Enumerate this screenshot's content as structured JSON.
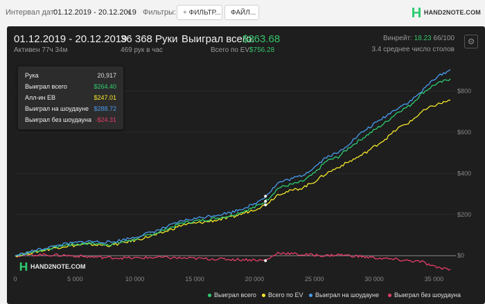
{
  "toolbar": {
    "date_interval_label": "Интервал дат:",
    "date_interval_value": "01.12.2019 - 20.12.2019",
    "filters_label": "Фильтры:",
    "filters_button": "ФИЛЬТР...",
    "files_button": "ФАЙЛ...",
    "logo_text": "HAND2NOTE.COM"
  },
  "summary": {
    "date_range": "01.12.2019 - 20.12.2019",
    "active_time": "Активен 77ч 34м",
    "hands": "36 368 Руки",
    "hands_per_hour": "469 рук в час",
    "won_total_label": "Выиграл всего:",
    "won_total_value": "$863.68",
    "ev_total_label": "Всего по EV:",
    "ev_total_value": "$756.28",
    "winrate_label": "Винрейт:",
    "winrate_value": "18.23",
    "winrate_suffix": "66/100",
    "avg_tables": "3.4 среднее число столов"
  },
  "tooltip": {
    "rows": [
      {
        "label": "Рука",
        "value": "20,917",
        "color": "#dddddd"
      },
      {
        "label": "Выиграл всего",
        "value": "$264.40",
        "color": "#2ecc71"
      },
      {
        "label": "Алл-ин ЕВ",
        "value": "$247.01",
        "color": "#f5e82a"
      },
      {
        "label": "Выиграл на шоудауне",
        "value": "$288.72",
        "color": "#4a9df0"
      },
      {
        "label": "Выиграл без шоудауна",
        "value": "-$24.31",
        "color": "#e63d6a"
      }
    ]
  },
  "chart_data": {
    "type": "line",
    "x_ticks": [
      0,
      5000,
      10000,
      15000,
      20000,
      25000,
      30000,
      35000
    ],
    "x_tick_labels": [
      "0",
      "5 000",
      "10 000",
      "15 000",
      "20 000",
      "25 000",
      "30 000",
      "35 000"
    ],
    "y_ticks": [
      0,
      200,
      400,
      600,
      800
    ],
    "y_tick_labels": [
      "$0",
      "$200",
      "$400",
      "$600",
      "$800"
    ],
    "xlim": [
      0,
      36368
    ],
    "ylim": [
      -70,
      930
    ],
    "series": [
      {
        "name": "Выиграл всего",
        "color": "#2ecc71",
        "x": [
          0,
          2000,
          4000,
          6000,
          8000,
          10000,
          12000,
          14000,
          16000,
          18000,
          20000,
          20917,
          22000,
          24000,
          25000,
          26000,
          27000,
          28000,
          29000,
          30000,
          31000,
          32000,
          33000,
          34000,
          35000,
          36368
        ],
        "y": [
          0,
          25,
          50,
          60,
          55,
          80,
          115,
          160,
          175,
          195,
          235,
          264,
          330,
          360,
          400,
          460,
          480,
          530,
          570,
          610,
          650,
          700,
          730,
          790,
          830,
          860
        ]
      },
      {
        "name": "Всего по EV",
        "color": "#f5e82a",
        "x": [
          0,
          2000,
          4000,
          6000,
          8000,
          10000,
          12000,
          14000,
          16000,
          18000,
          20000,
          20917,
          22000,
          24000,
          25000,
          26000,
          27000,
          28000,
          29000,
          30000,
          31000,
          32000,
          33000,
          34000,
          35000,
          36368
        ],
        "y": [
          0,
          22,
          45,
          55,
          50,
          75,
          105,
          150,
          165,
          185,
          225,
          247,
          300,
          330,
          360,
          400,
          430,
          460,
          490,
          530,
          570,
          620,
          650,
          700,
          730,
          756
        ]
      },
      {
        "name": "Выиграл на шоудауне",
        "color": "#4a9df0",
        "x": [
          0,
          2000,
          4000,
          6000,
          8000,
          10000,
          12000,
          14000,
          16000,
          18000,
          20000,
          20917,
          22000,
          24000,
          25000,
          26000,
          27000,
          28000,
          29000,
          30000,
          31000,
          32000,
          33000,
          34000,
          35000,
          36368
        ],
        "y": [
          0,
          30,
          55,
          70,
          65,
          90,
          125,
          170,
          190,
          210,
          250,
          289,
          355,
          390,
          430,
          480,
          500,
          550,
          600,
          640,
          680,
          720,
          750,
          800,
          860,
          905
        ]
      },
      {
        "name": "Выиграл без шоудауна",
        "color": "#e63d6a",
        "x": [
          0,
          2000,
          4000,
          6000,
          8000,
          10000,
          12000,
          14000,
          16000,
          18000,
          20000,
          20917,
          22000,
          24000,
          25000,
          26000,
          27000,
          28000,
          29000,
          30000,
          31000,
          32000,
          33000,
          34000,
          35000,
          36368
        ],
        "y": [
          0,
          5,
          2,
          -5,
          -10,
          -12,
          -8,
          -12,
          -15,
          -18,
          -20,
          -24,
          15,
          5,
          3,
          0,
          5,
          0,
          -5,
          -10,
          -15,
          -20,
          -25,
          -30,
          -55,
          -65
        ]
      }
    ]
  },
  "legend": {
    "items": [
      {
        "label": "Выиграл всего",
        "color": "#2ecc71"
      },
      {
        "label": "Всего по EV",
        "color": "#f5e82a"
      },
      {
        "label": "Выиграл на шоудауне",
        "color": "#4a9df0"
      },
      {
        "label": "Выиграл без шоудауна",
        "color": "#e63d6a"
      }
    ]
  },
  "watermark": {
    "text": "HAND2NOTE.COM"
  },
  "colors": {
    "panel_bg": "#1e1e1e",
    "accent_green": "#35c46a"
  }
}
